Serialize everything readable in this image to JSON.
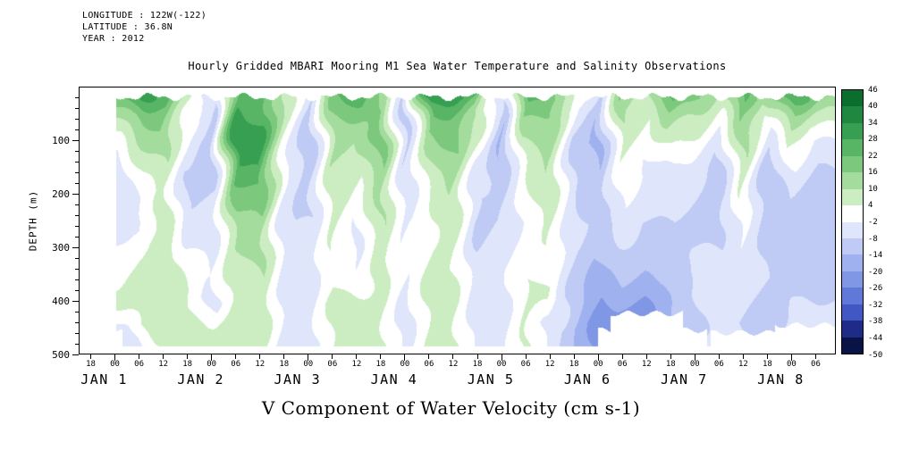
{
  "header": {
    "longitude": "LONGITUDE : 122W(-122)",
    "latitude": "LATITUDE : 36.8N",
    "year": "YEAR : 2012"
  },
  "title": "Hourly Gridded MBARI Mooring M1 Sea Water Temperature and Salinity Observations",
  "bottom_title": "V Component of Water Velocity (cm s-1)",
  "axes": {
    "y_label": "DEPTH (m)",
    "y_major_ticks": [
      100,
      200,
      300,
      400,
      500
    ],
    "y_minor_step": 20,
    "y_range": [
      0,
      500
    ],
    "x_hour_ticks": {
      "hours": [
        -6,
        0,
        6,
        12,
        18,
        24,
        30,
        36,
        42,
        48,
        54,
        60,
        66,
        72,
        78,
        84,
        90,
        96,
        102,
        108,
        114,
        120,
        126,
        132,
        138,
        144,
        150,
        156,
        162,
        168,
        174
      ],
      "labels": [
        "18",
        "00",
        "06",
        "12",
        "18",
        "00",
        "06",
        "12",
        "18",
        "00",
        "06",
        "12",
        "18",
        "00",
        "06",
        "12",
        "18",
        "00",
        "06",
        "12",
        "18",
        "00",
        "06",
        "12",
        "18",
        "00",
        "06",
        "12",
        "18",
        "00",
        "06"
      ]
    },
    "x_day_labels": [
      {
        "hour": 0,
        "label": "JAN 1"
      },
      {
        "hour": 24,
        "label": "JAN 2"
      },
      {
        "hour": 48,
        "label": "JAN 3"
      },
      {
        "hour": 72,
        "label": "JAN 4"
      },
      {
        "hour": 96,
        "label": "JAN 5"
      },
      {
        "hour": 120,
        "label": "JAN 6"
      },
      {
        "hour": 144,
        "label": "JAN 7"
      },
      {
        "hour": 168,
        "label": "JAN 8"
      }
    ]
  },
  "colorbar": {
    "tick_labels": [
      "46",
      "40",
      "34",
      "28",
      "22",
      "16",
      "10",
      "4",
      "-2",
      "-8",
      "-14",
      "-20",
      "-26",
      "-32",
      "-38",
      "-44",
      "-50"
    ]
  },
  "chart_data": {
    "type": "heatmap",
    "title": "Hourly Gridded MBARI Mooring M1 Sea Water Temperature and Salinity Observations",
    "value_label": "V Component of Water Velocity (cm s-1)",
    "ylabel": "DEPTH (m)",
    "x_hours": [
      0,
      6,
      12,
      18,
      24,
      30,
      36,
      42,
      48,
      54,
      60,
      66,
      72,
      78,
      84,
      90,
      96,
      102,
      108,
      114,
      120,
      126,
      132,
      138,
      144,
      150,
      156,
      162,
      168,
      174
    ],
    "depths": [
      15,
      50,
      100,
      150,
      200,
      250,
      300,
      350,
      400,
      450,
      490
    ],
    "values": [
      [
        22,
        30,
        26,
        8,
        -6,
        24,
        28,
        10,
        -8,
        20,
        26,
        12,
        -10,
        34,
        30,
        24,
        -8,
        28,
        22,
        6,
        -10,
        18,
        8,
        26,
        20,
        10,
        24,
        12,
        28,
        18
      ],
      [
        12,
        18,
        20,
        2,
        -10,
        30,
        26,
        6,
        -12,
        16,
        18,
        16,
        -12,
        24,
        22,
        12,
        -14,
        18,
        16,
        -2,
        -14,
        12,
        4,
        16,
        10,
        2,
        18,
        4,
        16,
        8
      ],
      [
        2,
        10,
        14,
        -4,
        -12,
        34,
        30,
        2,
        -14,
        12,
        10,
        20,
        -10,
        14,
        18,
        4,
        -16,
        10,
        12,
        -8,
        -16,
        8,
        0,
        6,
        2,
        -6,
        12,
        -6,
        6,
        -2
      ],
      [
        -6,
        4,
        10,
        -8,
        -10,
        26,
        28,
        -2,
        -12,
        10,
        6,
        16,
        -8,
        8,
        14,
        -4,
        -12,
        6,
        10,
        -10,
        -14,
        4,
        -4,
        -2,
        -4,
        -10,
        8,
        -12,
        -2,
        -8
      ],
      [
        -8,
        -2,
        6,
        -10,
        -8,
        18,
        20,
        -6,
        -10,
        8,
        2,
        12,
        -6,
        4,
        10,
        -8,
        -10,
        2,
        8,
        -8,
        -12,
        0,
        -6,
        -6,
        -8,
        -12,
        4,
        -14,
        -8,
        -12
      ],
      [
        -6,
        -4,
        8,
        -6,
        -6,
        14,
        16,
        -8,
        -8,
        6,
        -2,
        10,
        -4,
        2,
        8,
        -10,
        -8,
        0,
        6,
        -6,
        -10,
        -4,
        -8,
        -8,
        -10,
        -10,
        0,
        -12,
        -10,
        -14
      ],
      [
        -2,
        2,
        10,
        -2,
        -4,
        10,
        12,
        -6,
        -6,
        4,
        -4,
        8,
        -2,
        4,
        6,
        -8,
        -6,
        2,
        4,
        -8,
        -12,
        -8,
        -10,
        -10,
        -8,
        -8,
        -2,
        -10,
        -12,
        -12
      ],
      [
        2,
        6,
        8,
        2,
        -2,
        8,
        10,
        -4,
        -4,
        2,
        -2,
        6,
        -2,
        6,
        4,
        -6,
        -4,
        4,
        2,
        -10,
        -16,
        -12,
        -14,
        -12,
        -6,
        -6,
        -4,
        -8,
        -10,
        -10
      ],
      [
        6,
        6,
        8,
        5,
        -5,
        8,
        10,
        -5,
        -5,
        6,
        5,
        6,
        -5,
        6,
        6,
        -6,
        -5,
        5,
        5,
        -12,
        -20,
        -18,
        -20,
        -14,
        -8,
        -5,
        -6,
        -10,
        -8,
        -8
      ],
      [
        -5,
        5,
        6,
        5,
        5,
        6,
        8,
        -5,
        -5,
        5,
        5,
        5,
        -5,
        5,
        5,
        -5,
        -5,
        5,
        -5,
        -14,
        -24,
        -26,
        -24,
        -16,
        -10,
        -6,
        -8,
        -12,
        -6,
        -6
      ],
      [
        -6,
        -5,
        5,
        5,
        5,
        5,
        6,
        -5,
        -5,
        5,
        5,
        5,
        -5,
        5,
        5,
        -5,
        -5,
        5,
        -5,
        -12,
        -22,
        -28,
        -26,
        -14,
        -8,
        -6,
        -6,
        -10,
        -5,
        -5
      ]
    ],
    "value_bins": {
      "boundaries": [
        -50,
        -44,
        -38,
        -32,
        -26,
        -20,
        -14,
        -8,
        -2,
        4,
        10,
        16,
        22,
        28,
        34,
        40,
        46
      ],
      "colors_low_to_high": [
        "#0a1345",
        "#1e2c87",
        "#4057c4",
        "#6079d9",
        "#8097e6",
        "#9fb1ee",
        "#bfcbf4",
        "#dfe5fa",
        "#ffffff",
        "#ccedc2",
        "#a3dc9c",
        "#7cc97e",
        "#57b565",
        "#379f51",
        "#1f8840",
        "#0b6e2f"
      ]
    },
    "axis_domain": {
      "t_min": -9,
      "t_max": 179,
      "z_min": 0,
      "z_max": 500
    },
    "data_extent": {
      "t_min": 0,
      "z_top": 17,
      "z_bottom": 486
    },
    "missing_regions": [
      {
        "t0": -9,
        "t1": 1.5,
        "z0": 458,
        "z1": 500
      },
      {
        "t0": 123,
        "t1": 141,
        "z0": 424,
        "z1": 500
      },
      {
        "t0": 120,
        "t1": 147,
        "z0": 455,
        "z1": 500
      },
      {
        "t0": 148,
        "t1": 180,
        "z0": 460,
        "z1": 500
      },
      {
        "t0": 164,
        "t1": 180,
        "z0": 446,
        "z1": 500
      }
    ]
  }
}
